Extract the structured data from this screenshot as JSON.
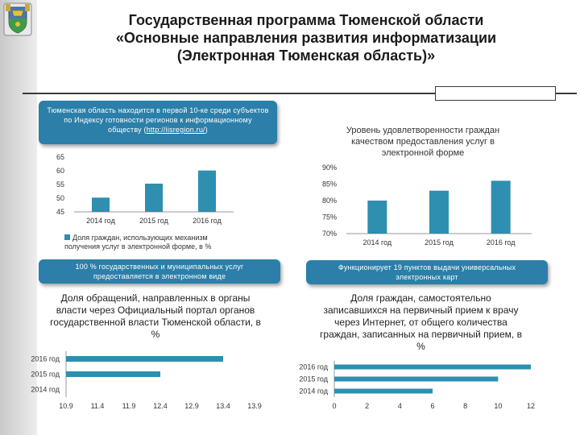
{
  "header": {
    "title_lines": [
      "Государственная программа Тюменской области",
      "«Основные направления развития информатизации",
      "(Электронная Тюменская область)»"
    ]
  },
  "colors": {
    "bar": "#2e8fb0",
    "banner": "#2b7fa8",
    "axis": "#999999"
  },
  "banners": {
    "index_rank": {
      "text": "Тюменская область находится в первой 10-ке среди субъектов по Индексу готовности регионов к информационному обществу (",
      "link": "http://iisregion.ru/",
      "suffix": ")"
    },
    "services": "100 % государственных и муниципальных услуг предоставляется в электронном виде",
    "kiosks": "Функционирует 19 пунктов выдачи универсальных электронных карт"
  },
  "chart_data": [
    {
      "type": "bar",
      "categories": [
        "2014 год",
        "2015 год",
        "2016 год"
      ],
      "values": [
        50.2,
        55.3,
        60.1
      ],
      "ylim": [
        45,
        65
      ],
      "yticks": [
        "65",
        "60",
        "55",
        "50",
        "45"
      ],
      "legend": "Доля граждан, использующих механизм получения услуг в электронной форме, в %",
      "grid": false
    },
    {
      "type": "bar",
      "title": "Уровень удовлетворенности граждан качеством предоставления услуг в электронной форме",
      "categories": [
        "2014 год",
        "2015 год",
        "2016 год"
      ],
      "values": [
        80,
        83,
        86
      ],
      "ylim": [
        70,
        90
      ],
      "yticks": [
        "90%",
        "85%",
        "80%",
        "75%",
        "70%"
      ],
      "grid": false
    },
    {
      "type": "bar",
      "orientation": "horizontal",
      "title": "Доля обращений, направленных в органы власти через Официальный портал органов государственной власти Тюменской области, в %",
      "categories": [
        "2016 год",
        "2015 год",
        "2014 год"
      ],
      "values": [
        13.4,
        12.4,
        10.9
      ],
      "xlim": [
        10.9,
        13.9
      ],
      "xticks": [
        "10.9",
        "11.4",
        "11.9",
        "12.4",
        "12.9",
        "13.4",
        "13.9"
      ],
      "grid": false
    },
    {
      "type": "bar",
      "orientation": "horizontal",
      "title": "Доля граждан, самостоятельно записавшихся на первичный прием к врачу через Интернет, от общего количества граждан, записанных на первичный прием, в %",
      "categories": [
        "2016 год",
        "2015 год",
        "2014 год"
      ],
      "values": [
        12,
        10,
        6
      ],
      "xlim": [
        0,
        12
      ],
      "xticks": [
        "0",
        "2",
        "4",
        "6",
        "8",
        "10",
        "12"
      ],
      "grid": false
    }
  ]
}
